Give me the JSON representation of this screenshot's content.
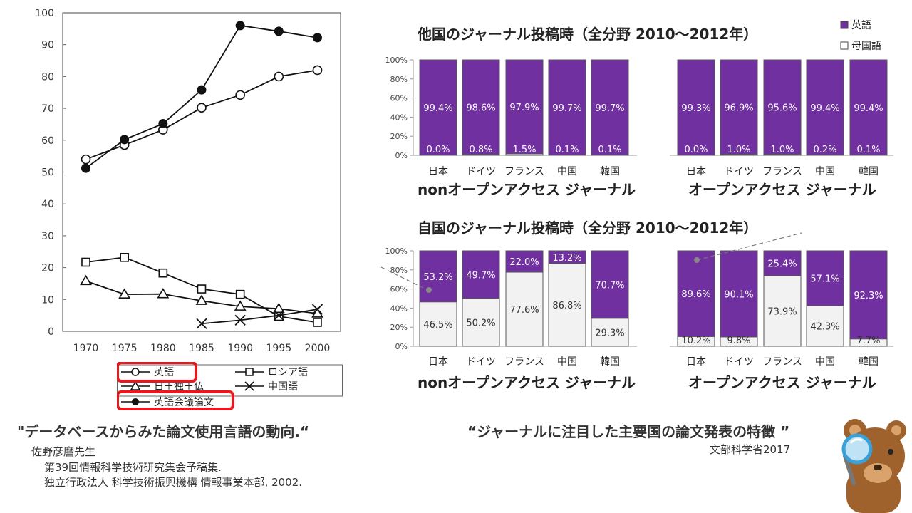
{
  "line_chart": {
    "legend": {
      "english": "英語",
      "russian": "ロシア語",
      "jfg": "日＋独＋仏",
      "chinese": "中国語",
      "english_conf": "英語会議論文"
    },
    "legend_highlight_color": "#e8191e"
  },
  "left_caption": {
    "title": "\"データベースからみた論文使用言語の動向.“",
    "author": "佐野彦麿先生",
    "line1": "第39回情報科学技術研究集会予稿集.",
    "line2": "独立行政法人 科学技術振興機構 情報事業本部, 2002."
  },
  "right_caption": {
    "title": "“ジャーナルに注目した主要国の論文発表の特徴 ”",
    "source": "文部科学省2017"
  },
  "bar_charts": {
    "legend_english": "英語",
    "legend_native": "母国語",
    "english_color": "#7030a0",
    "native_color": "#f2f2f2",
    "top_title": "他国のジャーナル投稿時（全分野 2010～2012年）",
    "bottom_title": "自国のジャーナル投稿時（全分野 2010～2012年）",
    "group_label_nonoa": "nonオープンアクセス ジャーナル",
    "group_label_oa": "オープンアクセス ジャーナル",
    "y_ticks": [
      "0%",
      "20%",
      "40%",
      "60%",
      "80%",
      "100%"
    ]
  },
  "chart_data": [
    {
      "type": "line",
      "x": [
        1970,
        1975,
        1980,
        1985,
        1990,
        1995,
        2000
      ],
      "ylim": [
        0,
        100
      ],
      "y_ticks": [
        "0",
        "10",
        "20",
        "30",
        "40",
        "50",
        "60",
        "70",
        "80",
        "90",
        "100"
      ],
      "x_ticks": [
        "1970",
        "1975",
        "1980",
        "1985",
        "1990",
        "1995",
        "2000"
      ],
      "series": [
        {
          "name": "英語",
          "marker": "open-circle",
          "values": [
            54,
            58.5,
            63.3,
            70.2,
            74.2,
            80,
            82
          ]
        },
        {
          "name": "英語会議論文",
          "marker": "filled-circle",
          "values": [
            51.2,
            60.2,
            65.2,
            75.8,
            96,
            94.2,
            92.2
          ]
        },
        {
          "name": "ロシア語",
          "marker": "open-square",
          "values": [
            21.7,
            23.2,
            18.3,
            13.3,
            11.6,
            4.7,
            2.8
          ]
        },
        {
          "name": "日＋独＋仏",
          "marker": "open-triangle",
          "values": [
            15.8,
            11.6,
            11.7,
            9.6,
            7.8,
            7.1,
            5.6
          ]
        },
        {
          "name": "中国語",
          "marker": "x",
          "values": [
            null,
            null,
            null,
            2.4,
            3.5,
            5.0,
            6.9
          ]
        }
      ]
    },
    {
      "type": "bar",
      "stacked": true,
      "title": "他国のジャーナル投稿時（全分野 2010～2012年）",
      "ylim": [
        0,
        100
      ],
      "categories": [
        "日本",
        "ドイツ",
        "フランス",
        "中国",
        "韓国"
      ],
      "groups": [
        {
          "name": "nonオープンアクセス ジャーナル",
          "english": [
            99.4,
            98.6,
            97.9,
            99.7,
            99.7
          ],
          "native": [
            0.0,
            0.8,
            1.5,
            0.1,
            0.1
          ],
          "english_labels": [
            "99.4%",
            "98.6%",
            "97.9%",
            "99.7%",
            "99.7%"
          ],
          "native_labels": [
            "0.0%",
            "0.8%",
            "1.5%",
            "0.1%",
            "0.1%"
          ]
        },
        {
          "name": "オープンアクセス ジャーナル",
          "english": [
            99.3,
            96.9,
            95.6,
            99.4,
            99.4
          ],
          "native": [
            0.0,
            1.0,
            1.0,
            0.2,
            0.1
          ],
          "english_labels": [
            "99.3%",
            "96.9%",
            "95.6%",
            "99.4%",
            "99.4%"
          ],
          "native_labels": [
            "0.0%",
            "1.0%",
            "1.0%",
            "0.2%",
            "0.1%"
          ]
        }
      ]
    },
    {
      "type": "bar",
      "stacked": true,
      "title": "自国のジャーナル投稿時（全分野 2010～2012年）",
      "ylim": [
        0,
        100
      ],
      "categories": [
        "日本",
        "ドイツ",
        "フランス",
        "中国",
        "韓国"
      ],
      "groups": [
        {
          "name": "nonオープンアクセス ジャーナル",
          "english": [
            53.2,
            49.7,
            22.0,
            13.2,
            70.7
          ],
          "native": [
            46.5,
            50.2,
            77.6,
            86.8,
            29.3
          ],
          "english_labels": [
            "53.2%",
            "49.7%",
            "22.0%",
            "13.2%",
            "70.7%"
          ],
          "native_labels": [
            "46.5%",
            "50.2%",
            "77.6%",
            "86.8%",
            "29.3%"
          ]
        },
        {
          "name": "オープンアクセス ジャーナル",
          "english": [
            89.6,
            90.1,
            25.4,
            57.1,
            92.3
          ],
          "native": [
            10.2,
            9.8,
            73.9,
            42.3,
            7.7
          ],
          "english_labels": [
            "89.6%",
            "90.1%",
            "25.4%",
            "57.1%",
            "92.3%"
          ],
          "native_labels": [
            "10.2%",
            "9.8%",
            "73.9%",
            "42.3%",
            "7.7%"
          ]
        }
      ]
    }
  ]
}
